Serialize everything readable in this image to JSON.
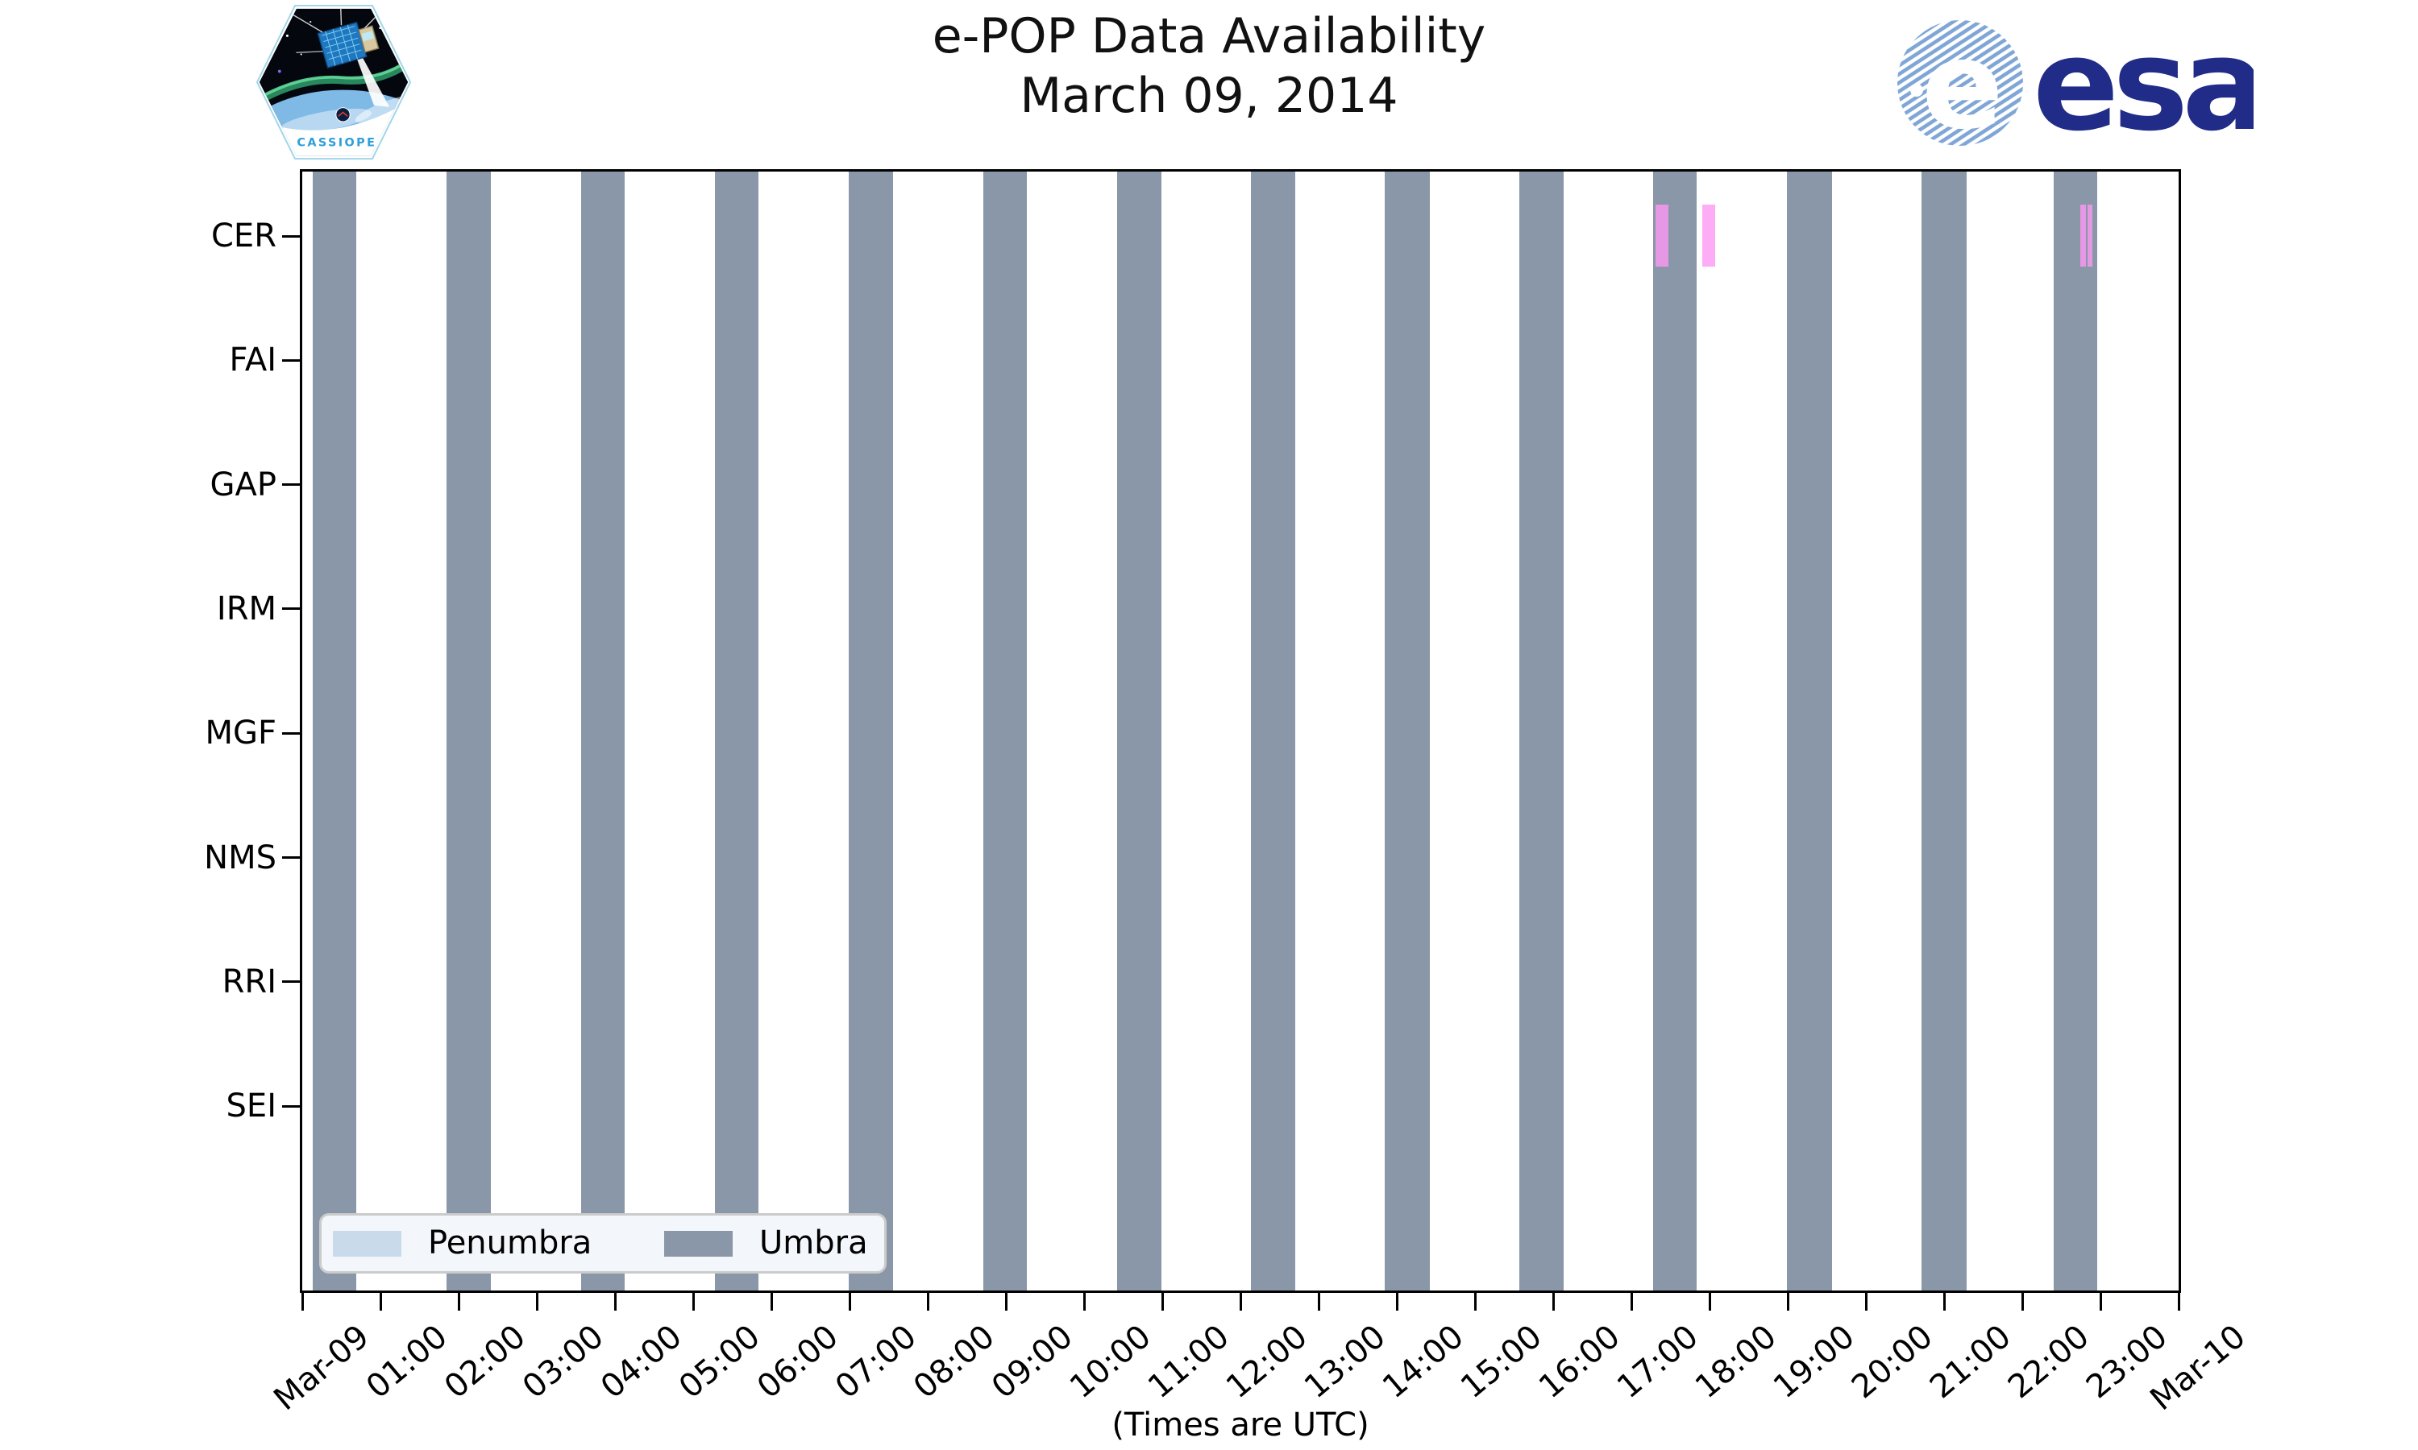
{
  "header": {
    "title_line1": "e-POP Data Availability",
    "title_line2": "March 09, 2014",
    "cassiope_patch_text": "CASSIOPE",
    "esa_logo_text": "esa"
  },
  "chart_data": {
    "type": "timeline",
    "title": "e-POP Data Availability",
    "subtitle": "March 09, 2014",
    "xlabel": "(Times are UTC)",
    "grid": false,
    "x_axis": {
      "range_hours": [
        0,
        24
      ],
      "tick_labels": [
        "Mar-09",
        "01:00",
        "02:00",
        "03:00",
        "04:00",
        "05:00",
        "06:00",
        "07:00",
        "08:00",
        "09:00",
        "10:00",
        "11:00",
        "12:00",
        "13:00",
        "14:00",
        "15:00",
        "16:00",
        "17:00",
        "18:00",
        "19:00",
        "20:00",
        "21:00",
        "22:00",
        "23:00",
        "Mar-10"
      ]
    },
    "y_axis": {
      "instruments": [
        "CER",
        "FAI",
        "GAP",
        "IRM",
        "MGF",
        "NMS",
        "RRI",
        "SEI"
      ]
    },
    "legend": {
      "position": "lower-left",
      "entries": [
        {
          "label": "Penumbra",
          "color": "#C9DAEA"
        },
        {
          "label": "Umbra",
          "color": "#8A97A8"
        }
      ]
    },
    "umbra_intervals_hours_utc": [
      [
        0.13,
        0.69
      ],
      [
        1.85,
        2.41
      ],
      [
        3.57,
        4.12
      ],
      [
        5.28,
        5.84
      ],
      [
        6.99,
        7.56
      ],
      [
        8.71,
        9.27
      ],
      [
        10.42,
        10.99
      ],
      [
        12.13,
        12.7
      ],
      [
        13.85,
        14.42
      ],
      [
        15.57,
        16.13
      ],
      [
        17.28,
        17.84
      ],
      [
        18.99,
        19.57
      ],
      [
        20.71,
        21.29
      ],
      [
        22.4,
        22.96
      ]
    ],
    "cer_event_marks": {
      "instrument": "CER",
      "color": "rgba(252,152,243,0.8)",
      "intervals_hours_utc": [
        [
          17.31,
          17.47
        ],
        [
          17.91,
          18.07
        ],
        [
          22.74,
          22.81
        ],
        [
          22.84,
          22.9
        ]
      ]
    },
    "colors": {
      "umbra": "#8A97A8",
      "penumbra": "#C9DAEA",
      "axis": "#000000",
      "background": "#FFFFFF"
    }
  },
  "branding": {
    "esa_navy": "#202C88",
    "esa_stripe_blue": "#7FA6D6",
    "cassiope_text_blue": "#2E9FD8"
  }
}
